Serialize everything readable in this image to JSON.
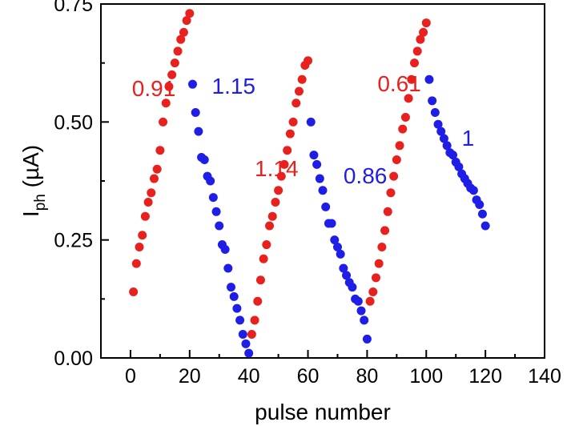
{
  "chart_data": {
    "type": "scatter",
    "title": "",
    "xlabel": "pulse number",
    "ylabel": "I_ph (µA)",
    "ylabel_main": "I",
    "ylabel_sub": "ph",
    "ylabel_unit": " (µA)",
    "xlim": [
      -10,
      140
    ],
    "ylim": [
      0,
      0.75
    ],
    "xticks": [
      0,
      20,
      40,
      60,
      80,
      100,
      120,
      140
    ],
    "yticks": [
      0.0,
      0.25,
      0.5,
      0.75
    ],
    "ytick_labels": [
      "0.00",
      "0.25",
      "0.50",
      "0.75"
    ],
    "grid": false,
    "legend": "none",
    "colors": {
      "red": "#e8211f",
      "blue": "#1e1ee6"
    },
    "series": [
      {
        "color": "red",
        "x": [
          1,
          2,
          3,
          4,
          5,
          6,
          7,
          8,
          9,
          10,
          11,
          12,
          13,
          14,
          15,
          16,
          17,
          18,
          19,
          20
        ],
        "y": [
          0.14,
          0.2,
          0.235,
          0.26,
          0.3,
          0.33,
          0.35,
          0.38,
          0.4,
          0.44,
          0.5,
          0.54,
          0.575,
          0.6,
          0.625,
          0.65,
          0.675,
          0.69,
          0.715,
          0.73
        ]
      },
      {
        "color": "blue",
        "x": [
          21,
          22,
          23,
          24,
          25,
          26,
          27,
          28,
          29,
          30,
          31,
          32,
          33,
          34,
          35,
          36,
          37,
          38,
          39,
          40
        ],
        "y": [
          0.58,
          0.52,
          0.48,
          0.425,
          0.42,
          0.385,
          0.375,
          0.34,
          0.31,
          0.28,
          0.24,
          0.23,
          0.19,
          0.15,
          0.13,
          0.105,
          0.08,
          0.05,
          0.03,
          0.01
        ]
      },
      {
        "color": "red",
        "x": [
          41,
          42,
          43,
          44,
          45,
          46,
          47,
          48,
          49,
          50,
          51,
          52,
          53,
          54,
          55,
          56,
          57,
          58,
          59,
          60
        ],
        "y": [
          0.05,
          0.08,
          0.12,
          0.165,
          0.21,
          0.24,
          0.28,
          0.3,
          0.33,
          0.355,
          0.385,
          0.41,
          0.44,
          0.475,
          0.5,
          0.54,
          0.565,
          0.59,
          0.62,
          0.63
        ]
      },
      {
        "color": "blue",
        "x": [
          61,
          62,
          63,
          64,
          65,
          66,
          67,
          68,
          69,
          70,
          71,
          72,
          73,
          74,
          75,
          76,
          77,
          78,
          79,
          80
        ],
        "y": [
          0.5,
          0.43,
          0.41,
          0.38,
          0.355,
          0.32,
          0.285,
          0.285,
          0.25,
          0.235,
          0.22,
          0.19,
          0.175,
          0.16,
          0.15,
          0.125,
          0.12,
          0.1,
          0.08,
          0.04
        ]
      },
      {
        "color": "red",
        "x": [
          81,
          82,
          83,
          84,
          85,
          86,
          87,
          88,
          89,
          90,
          91,
          92,
          93,
          94,
          95,
          96,
          97,
          98,
          99,
          100
        ],
        "y": [
          0.12,
          0.14,
          0.17,
          0.2,
          0.235,
          0.27,
          0.31,
          0.35,
          0.385,
          0.42,
          0.45,
          0.485,
          0.51,
          0.55,
          0.59,
          0.625,
          0.65,
          0.675,
          0.69,
          0.71
        ]
      },
      {
        "color": "blue",
        "x": [
          101,
          102,
          103,
          104,
          105,
          106,
          107,
          108,
          109,
          110,
          111,
          112,
          113,
          114,
          115,
          116,
          117,
          118,
          119,
          120
        ],
        "y": [
          0.59,
          0.545,
          0.52,
          0.495,
          0.48,
          0.465,
          0.45,
          0.435,
          0.43,
          0.415,
          0.405,
          0.39,
          0.38,
          0.37,
          0.36,
          0.355,
          0.335,
          0.325,
          0.305,
          0.28
        ]
      }
    ],
    "annotations": [
      {
        "text": "0.91",
        "color": "red",
        "x": 0.5,
        "y": 0.555
      },
      {
        "text": "1.15",
        "color": "blue",
        "x": 27.5,
        "y": 0.56
      },
      {
        "text": "1.14",
        "color": "red",
        "x": 42,
        "y": 0.385
      },
      {
        "text": "0.86",
        "color": "blue",
        "x": 72,
        "y": 0.37
      },
      {
        "text": "0.61",
        "color": "red",
        "x": 83.5,
        "y": 0.565
      },
      {
        "text": "1",
        "color": "blue",
        "x": 112,
        "y": 0.45
      }
    ]
  }
}
